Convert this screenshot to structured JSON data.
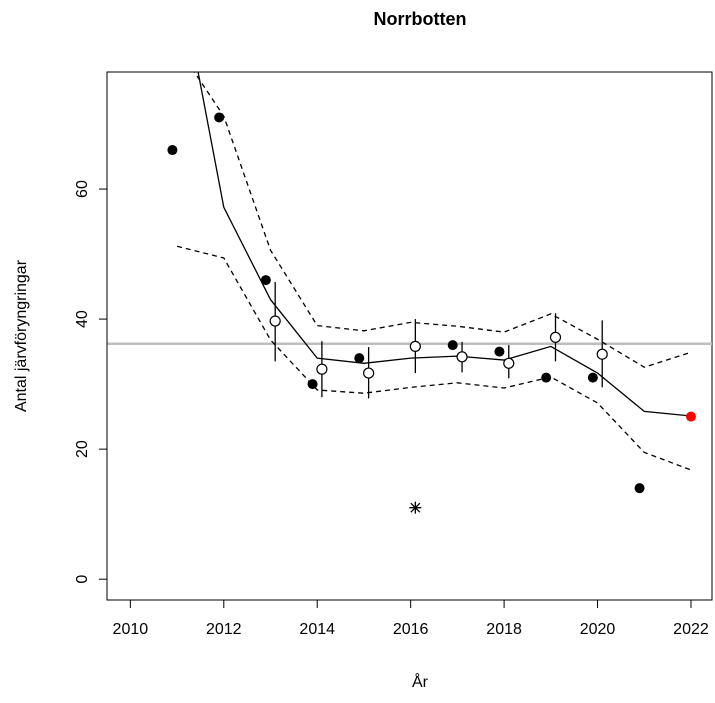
{
  "chart_data": {
    "type": "line",
    "title": "Norrbotten",
    "x_label": "År",
    "y_label": "Antal järvföryngringar",
    "xlim": [
      2009.5,
      2022.45
    ],
    "ylim": [
      -3.2,
      78
    ],
    "xticks": [
      2010,
      2012,
      2014,
      2016,
      2018,
      2020,
      2022
    ],
    "yticks": [
      0,
      20,
      40,
      60
    ],
    "reference_line": 36.2,
    "reference_color": "#bebebe",
    "series": [
      {
        "kind": "solid",
        "color": "#000000",
        "x": [
          2011,
          2012,
          2013,
          2014,
          2015,
          2016,
          2017,
          2018,
          2019,
          2020,
          2021,
          2022
        ],
        "values": [
          95,
          57.2,
          43,
          34,
          33.2,
          34,
          34.3,
          33.7,
          35.8,
          31.7,
          25.8,
          25.1
        ]
      },
      {
        "kind": "dashed",
        "color": "#000000",
        "x": [
          2011,
          2012,
          2013,
          2014,
          2015,
          2016,
          2017,
          2018,
          2019,
          2020,
          2021,
          2022
        ],
        "values": [
          82,
          71.2,
          50.6,
          39,
          38.2,
          39.5,
          38.9,
          38,
          40.8,
          36.9,
          32.6,
          34.9
        ]
      },
      {
        "kind": "dashed",
        "color": "#000000",
        "x": [
          2011,
          2012,
          2013,
          2014,
          2015,
          2016,
          2017,
          2018,
          2019,
          2020,
          2021,
          2022
        ],
        "values": [
          51.2,
          49.4,
          36.8,
          29.1,
          28.6,
          29.5,
          30.2,
          29.4,
          31.1,
          27.1,
          19.5,
          16.8
        ]
      },
      {
        "kind": "filled",
        "color": "#000000",
        "x": [
          2010.9,
          2011.9,
          2012.9,
          2013.9,
          2014.9,
          2016.9,
          2017.9,
          2018.9,
          2019.9,
          2020.9
        ],
        "values": [
          66,
          71,
          46,
          30,
          34,
          36,
          35,
          31,
          31,
          14
        ]
      },
      {
        "kind": "filled",
        "color": "#ff0000",
        "x": [
          2022
        ],
        "values": [
          25
        ]
      },
      {
        "kind": "open",
        "color": "#000000",
        "x": [
          2013.1,
          2014.1,
          2015.1,
          2016.1,
          2017.1,
          2018.1,
          2019.1,
          2020.1
        ],
        "values": [
          39.7,
          32.3,
          31.7,
          35.8,
          34.2,
          33.2,
          37.2,
          34.6
        ],
        "lower": [
          33.5,
          28,
          27.8,
          31.7,
          31.8,
          30.9,
          33.5,
          29.5
        ],
        "upper": [
          45.7,
          36.6,
          35.7,
          40,
          36.5,
          36,
          40.9,
          39.8
        ]
      },
      {
        "kind": "star",
        "color": "#000000",
        "x": [
          2016.1
        ],
        "values": [
          11
        ]
      }
    ]
  }
}
